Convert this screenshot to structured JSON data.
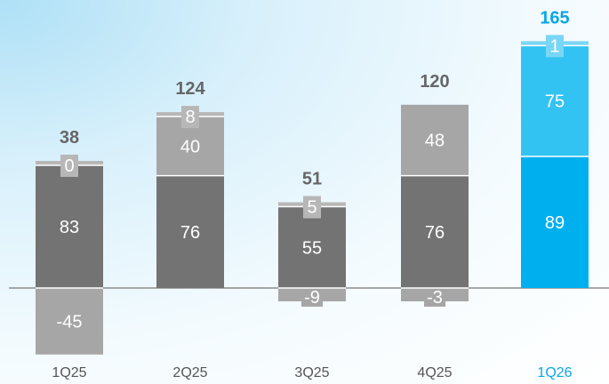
{
  "chart_data": {
    "type": "bar",
    "stacked": true,
    "categories": [
      "1Q25",
      "2Q25",
      "3Q25",
      "4Q25",
      "1Q26"
    ],
    "totals": [
      "38",
      "124",
      "51",
      "120",
      "165"
    ],
    "segments": [
      [
        {
          "value": -45,
          "label": "-45",
          "tone": "light"
        },
        {
          "value": 83,
          "label": "83",
          "tone": "dark"
        },
        {
          "value": 0,
          "label": "0",
          "tone": "top"
        }
      ],
      [
        {
          "value": 76,
          "label": "76",
          "tone": "dark"
        },
        {
          "value": 40,
          "label": "40",
          "tone": "light"
        },
        {
          "value": 8,
          "label": "8",
          "tone": "top"
        }
      ],
      [
        {
          "value": -9,
          "label": "-9",
          "tone": "light"
        },
        {
          "value": 55,
          "label": "55",
          "tone": "dark"
        },
        {
          "value": 5,
          "label": "5",
          "tone": "top"
        }
      ],
      [
        {
          "value": -3,
          "label": "-3",
          "tone": "light"
        },
        {
          "value": 76,
          "label": "76",
          "tone": "dark"
        },
        {
          "value": 48,
          "label": "48",
          "tone": "light"
        }
      ],
      [
        {
          "value": 89,
          "label": "89",
          "tone": "dark"
        },
        {
          "value": 75,
          "label": "75",
          "tone": "light"
        },
        {
          "value": 1,
          "label": "1",
          "tone": "top"
        }
      ]
    ],
    "highlight_index": 4,
    "xlabel": "",
    "ylabel": "",
    "grid": false,
    "colors": {
      "dark": "#737373",
      "light": "#a6a6a6",
      "top": "#b7b7b7",
      "highlight_dark": "#00b0ee",
      "highlight_light": "#33c3f2",
      "highlight_top": "#7ad6f6",
      "total_text": "#666666",
      "highlight_text": "#0aa6e6",
      "axis_text": "#555555",
      "axis_line": "#8c8c8c",
      "separator": "#ffffff"
    }
  }
}
